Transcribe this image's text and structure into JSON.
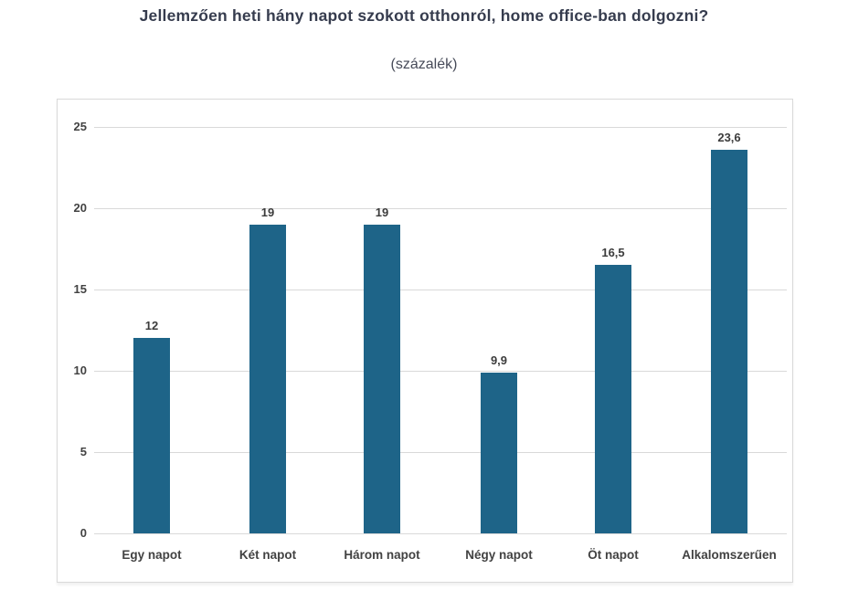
{
  "chart_data": {
    "type": "bar",
    "title": "Jellemzően heti hány napot szokott otthonról, home office-ban dolgozni?",
    "subtitle": "(százalék)",
    "categories": [
      "Egy napot",
      "Két napot",
      "Három napot",
      "Négy napot",
      "Öt napot",
      "Alkalomszerűen"
    ],
    "values": [
      12,
      19,
      19,
      9.9,
      16.5,
      23.6
    ],
    "value_labels": [
      "12",
      "19",
      "19",
      "9,9",
      "16,5",
      "23,6"
    ],
    "yticks": [
      0,
      5,
      10,
      15,
      20,
      25
    ],
    "ytick_labels": [
      "0",
      "5",
      "10",
      "15",
      "20",
      "25"
    ],
    "ylim": [
      0,
      25
    ],
    "xlabel": "",
    "ylabel": "",
    "grid": "horizontal",
    "legend": "none",
    "colors": {
      "bar": "#1e6488",
      "grid": "#d9d9d9",
      "axis_label": "#424242",
      "value_label": "#3c3c3c",
      "title": "#363c4e",
      "border": "#d9d9d9",
      "background": "#ffffff"
    }
  }
}
